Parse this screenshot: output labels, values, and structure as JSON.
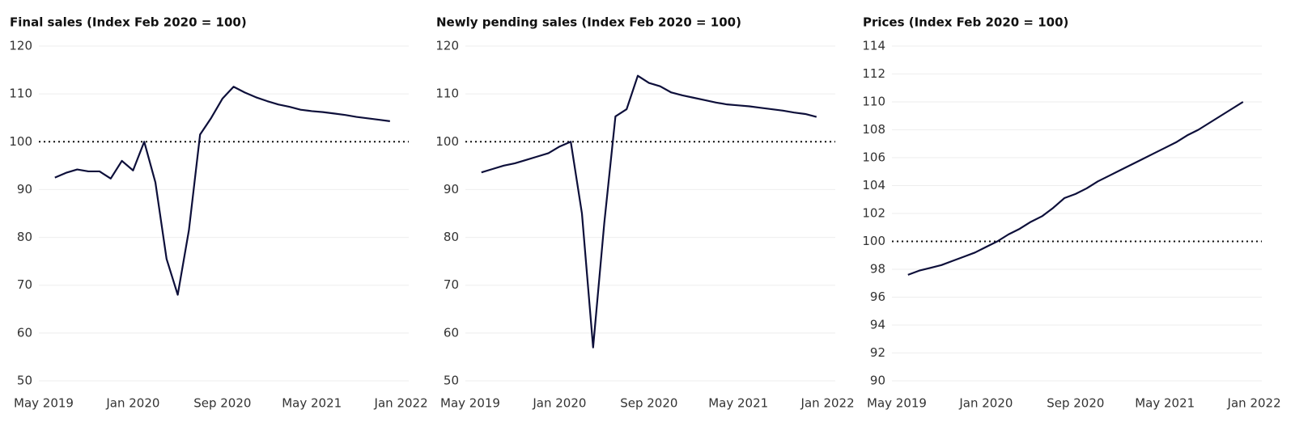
{
  "chart_data": [
    {
      "type": "line",
      "title": "Final sales (Index Feb 2020 = 100)",
      "categories": [
        "May 2019",
        null,
        null,
        null,
        null,
        null,
        null,
        null,
        "Jan 2020",
        null,
        null,
        null,
        null,
        null,
        null,
        null,
        "Sep 2020",
        null,
        null,
        null,
        null,
        null,
        null,
        null,
        "May 2021",
        null,
        null,
        null,
        null,
        null,
        null,
        null,
        "Jan 2022"
      ],
      "series": [
        {
          "name": "Final sales",
          "color": "#0d0f3a",
          "values": [
            null,
            92.5,
            93.5,
            94.2,
            93.8,
            93.8,
            92.3,
            96,
            94,
            100,
            91.5,
            75.5,
            68,
            81.5,
            101.5,
            105,
            109,
            111.5,
            110.3,
            109.3,
            108.5,
            107.8,
            107.3,
            106.7,
            106.4,
            106.2,
            105.9,
            105.6,
            105.2,
            104.9,
            104.6,
            104.3,
            null
          ]
        }
      ],
      "ylim": [
        50,
        120
      ],
      "yticks": [
        50,
        60,
        70,
        80,
        90,
        100,
        110,
        120
      ],
      "grid": true,
      "reference_line": 100
    },
    {
      "type": "line",
      "title": "Newly pending sales (Index Feb 2020 = 100)",
      "categories": [
        "May 2019",
        null,
        null,
        null,
        null,
        null,
        null,
        null,
        "Jan 2020",
        null,
        null,
        null,
        null,
        null,
        null,
        null,
        "Sep 2020",
        null,
        null,
        null,
        null,
        null,
        null,
        null,
        "May 2021",
        null,
        null,
        null,
        null,
        null,
        null,
        null,
        "Jan 2022"
      ],
      "series": [
        {
          "name": "Newly pending sales",
          "color": "#0d0f3a",
          "values": [
            null,
            93.6,
            94.3,
            95,
            95.5,
            96.2,
            96.9,
            97.6,
            99,
            100,
            85,
            57,
            83,
            105.3,
            106.8,
            113.8,
            112.3,
            111.6,
            110.3,
            109.7,
            109.2,
            108.7,
            108.2,
            107.8,
            107.6,
            107.4,
            107.1,
            106.8,
            106.5,
            106.1,
            105.8,
            105.2,
            null
          ]
        }
      ],
      "ylim": [
        50,
        120
      ],
      "yticks": [
        50,
        60,
        70,
        80,
        90,
        100,
        110,
        120
      ],
      "grid": true,
      "reference_line": 100
    },
    {
      "type": "line",
      "title": "Prices (Index Feb 2020 = 100)",
      "categories": [
        "May 2019",
        null,
        null,
        null,
        null,
        null,
        null,
        null,
        "Jan 2020",
        null,
        null,
        null,
        null,
        null,
        null,
        null,
        "Sep 2020",
        null,
        null,
        null,
        null,
        null,
        null,
        null,
        "May 2021",
        null,
        null,
        null,
        null,
        null,
        null,
        null,
        "Jan 2022"
      ],
      "series": [
        {
          "name": "Prices",
          "color": "#0d0f3a",
          "values": [
            null,
            97.6,
            97.9,
            98.1,
            98.3,
            98.6,
            98.9,
            99.2,
            99.6,
            100.0,
            100.5,
            100.9,
            101.4,
            101.8,
            102.4,
            103.1,
            103.4,
            103.8,
            104.3,
            104.7,
            105.1,
            105.5,
            105.9,
            106.3,
            106.7,
            107.1,
            107.6,
            108.0,
            108.5,
            109.0,
            109.5,
            110.0,
            null
          ]
        }
      ],
      "ylim": [
        90,
        114
      ],
      "yticks": [
        90,
        92,
        94,
        96,
        98,
        100,
        102,
        104,
        106,
        108,
        110,
        112,
        114
      ],
      "grid": true,
      "reference_line": 100
    }
  ]
}
